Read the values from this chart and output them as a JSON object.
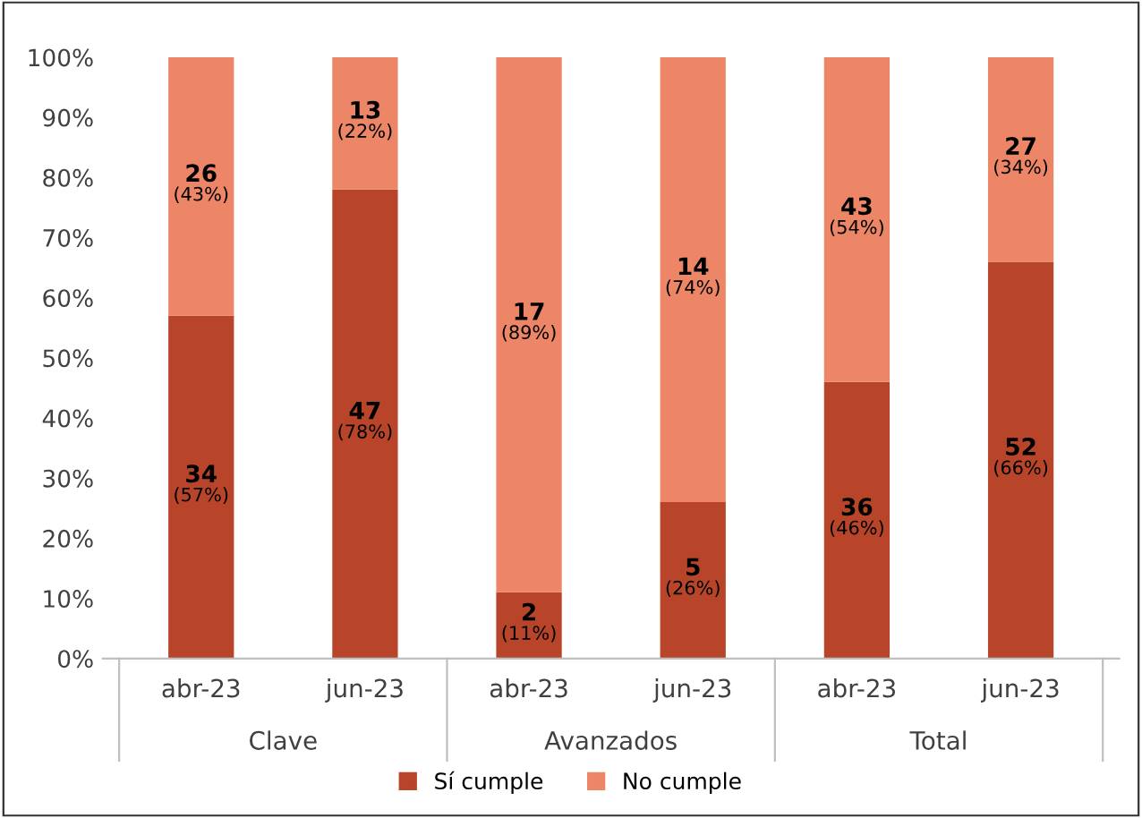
{
  "chart_data": {
    "type": "bar",
    "stacked": true,
    "categories": [
      "abr-23",
      "jun-23",
      "abr-23",
      "jun-23",
      "abr-23",
      "jun-23"
    ],
    "series": [
      {
        "name": "Sí cumple",
        "color": "#b8452a",
        "values": [
          57,
          78,
          11,
          26,
          46,
          66
        ],
        "value_labels": [
          "34\n(57%)",
          "47\n(78%)",
          "2\n(11%)",
          "5\n(26%)",
          "36\n(46%)",
          "52\n(66%)"
        ]
      },
      {
        "name": "No cumple",
        "color": "#ec8667",
        "values": [
          43,
          22,
          89,
          74,
          54,
          34
        ],
        "value_labels": [
          "26\n(43%)",
          "13\n(22%)",
          "17\n(89%)",
          "14\n(74%)",
          "43\n(54%)",
          "27\n(34%)"
        ]
      }
    ],
    "ylim": [
      0,
      100
    ],
    "yticks": [
      {
        "value": 0,
        "label": "0%"
      },
      {
        "value": 10,
        "label": "10%"
      },
      {
        "value": 20,
        "label": "20%"
      },
      {
        "value": 30,
        "label": "30%"
      },
      {
        "value": 40,
        "label": "40%"
      },
      {
        "value": 50,
        "label": "50%"
      },
      {
        "value": 60,
        "label": "60%"
      },
      {
        "value": 70,
        "label": "70%"
      },
      {
        "value": 80,
        "label": "80%"
      },
      {
        "value": 90,
        "label": "90%"
      },
      {
        "value": 100,
        "label": "100%"
      }
    ],
    "annotations": [
      "Clave",
      "Avanzados",
      "Total"
    ],
    "legend": "bottom",
    "grid": false
  }
}
